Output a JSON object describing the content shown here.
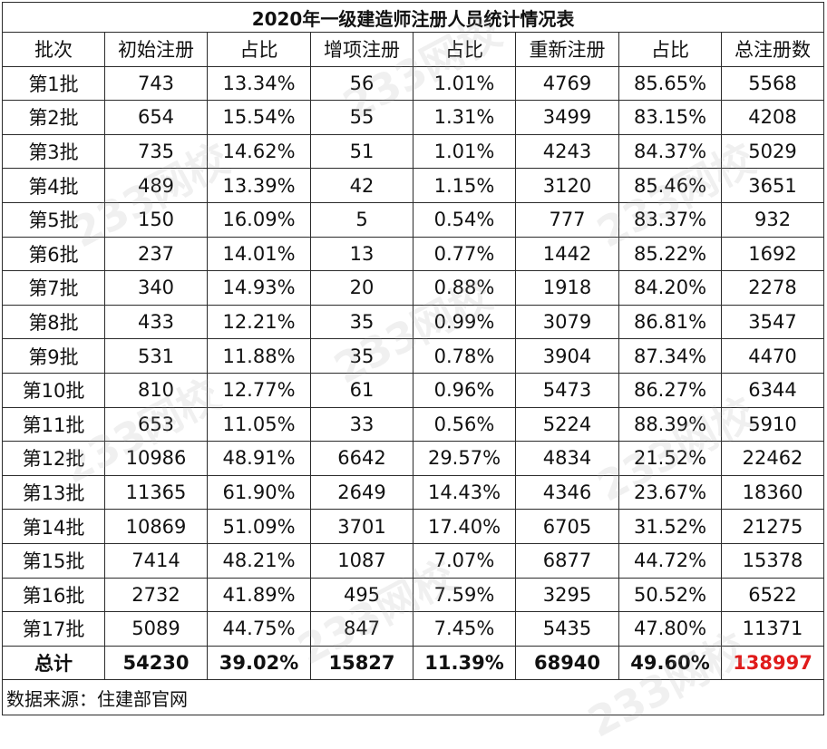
{
  "title": "2020年一级建造师注册人员统计情况表",
  "headers": [
    "批次",
    "初始注册",
    "占比",
    "增项注册",
    "占比",
    "重新注册",
    "占比",
    "总注册数"
  ],
  "rows": [
    [
      "第1批",
      "743",
      "13.34%",
      "56",
      "1.01%",
      "4769",
      "85.65%",
      "5568"
    ],
    [
      "第2批",
      "654",
      "15.54%",
      "55",
      "1.31%",
      "3499",
      "83.15%",
      "4208"
    ],
    [
      "第3批",
      "735",
      "14.62%",
      "51",
      "1.01%",
      "4243",
      "84.37%",
      "5029"
    ],
    [
      "第4批",
      "489",
      "13.39%",
      "42",
      "1.15%",
      "3120",
      "85.46%",
      "3651"
    ],
    [
      "第5批",
      "150",
      "16.09%",
      "5",
      "0.54%",
      "777",
      "83.37%",
      "932"
    ],
    [
      "第6批",
      "237",
      "14.01%",
      "13",
      "0.77%",
      "1442",
      "85.22%",
      "1692"
    ],
    [
      "第7批",
      "340",
      "14.93%",
      "20",
      "0.88%",
      "1918",
      "84.20%",
      "2278"
    ],
    [
      "第8批",
      "433",
      "12.21%",
      "35",
      "0.99%",
      "3079",
      "86.81%",
      "3547"
    ],
    [
      "第9批",
      "531",
      "11.88%",
      "35",
      "0.78%",
      "3904",
      "87.34%",
      "4470"
    ],
    [
      "第10批",
      "810",
      "12.77%",
      "61",
      "0.96%",
      "5473",
      "86.27%",
      "6344"
    ],
    [
      "第11批",
      "653",
      "11.05%",
      "33",
      "0.56%",
      "5224",
      "88.39%",
      "5910"
    ],
    [
      "第12批",
      "10986",
      "48.91%",
      "6642",
      "29.57%",
      "4834",
      "21.52%",
      "22462"
    ],
    [
      "第13批",
      "11365",
      "61.90%",
      "2649",
      "14.43%",
      "4346",
      "23.67%",
      "18360"
    ],
    [
      "第14批",
      "10869",
      "51.09%",
      "3701",
      "17.40%",
      "6705",
      "31.52%",
      "21275"
    ],
    [
      "第15批",
      "7414",
      "48.21%",
      "1087",
      "7.07%",
      "6877",
      "44.72%",
      "15378"
    ],
    [
      "第16批",
      "2732",
      "41.89%",
      "495",
      "7.59%",
      "3295",
      "50.52%",
      "6522"
    ],
    [
      "第17批",
      "5089",
      "44.75%",
      "847",
      "7.45%",
      "5435",
      "47.80%",
      "11371"
    ]
  ],
  "total": [
    "总计",
    "54230",
    "39.02%",
    "15827",
    "11.39%",
    "68940",
    "49.60%",
    "138997"
  ],
  "source": "数据来源：住建部官网",
  "watermark": "233网校",
  "colors": {
    "grand_total": "#e01b1b",
    "border": "#2b2b2b"
  }
}
